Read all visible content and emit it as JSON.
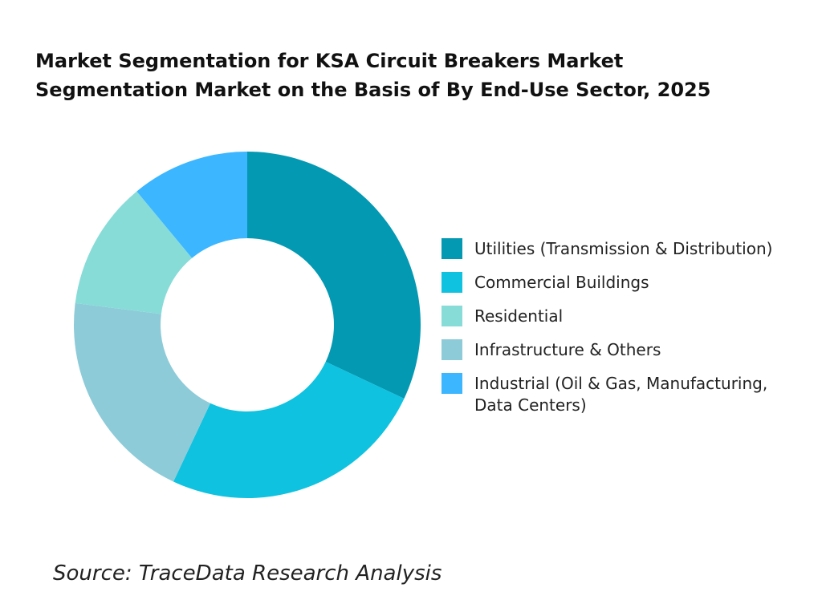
{
  "title_line1": "Market Segmentation for KSA Circuit Breakers Market",
  "title_line2": "Segmentation Market on the Basis of By End-Use Sector, 2025",
  "source": "Source: TraceData Research Analysis",
  "chart_data": {
    "type": "pie",
    "donut": true,
    "title": "Market Segmentation for KSA Circuit Breakers Market Segmentation Market on the Basis of By End-Use Sector, 2025",
    "legend_position": "right",
    "categories": [
      "Utilities (Transmission & Distribution)",
      "Commercial Buildings",
      "Infrastructure & Others",
      "Residential",
      "Industrial (Oil & Gas, Manufacturing, Data Centers)"
    ],
    "values": [
      32,
      25,
      20,
      12,
      11
    ],
    "colors": [
      "#0399B3",
      "#0EC2E0",
      "#8DCBD8",
      "#87DCD8",
      "#3BB6FF"
    ]
  },
  "legend": [
    {
      "label": "Utilities (Transmission & Distribution)",
      "color": "#0399B3"
    },
    {
      "label": "Commercial Buildings",
      "color": "#0EC2E0"
    },
    {
      "label": "Residential",
      "color": "#87DCD8"
    },
    {
      "label": "Infrastructure & Others",
      "color": "#8DCBD8"
    },
    {
      "label": "Industrial (Oil & Gas, Manufacturing, Data Centers)",
      "color": "#3BB6FF"
    }
  ]
}
